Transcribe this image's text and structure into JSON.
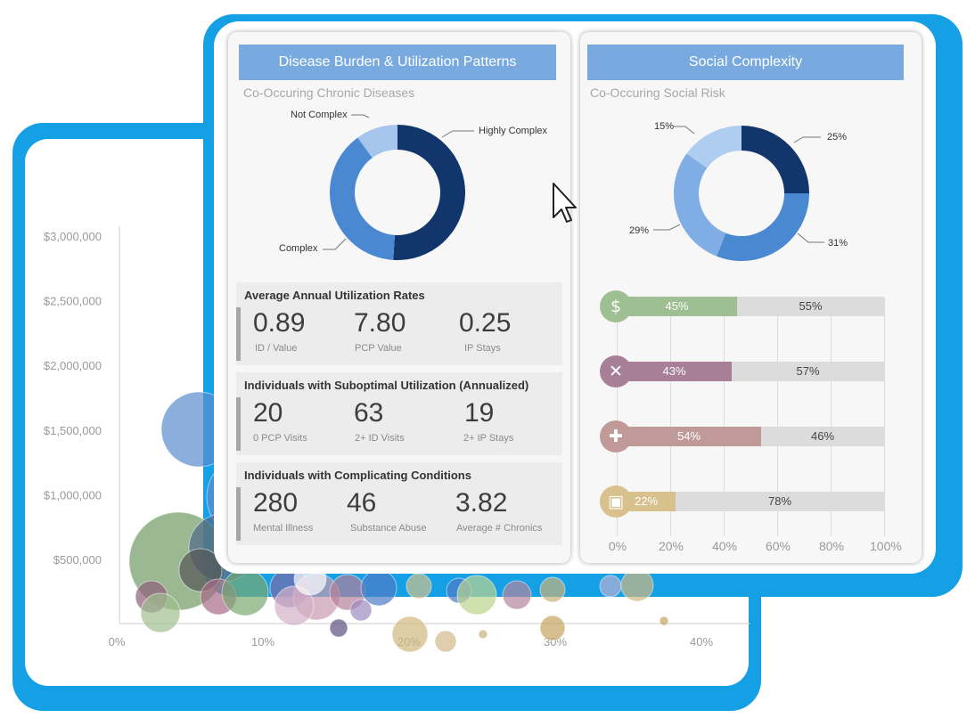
{
  "bubble_chart": {
    "y_ticks": [
      "$3,000,000",
      "$2,500,000",
      "$2,000,000",
      "$1,500,000",
      "$1,000,000",
      "$500,000"
    ],
    "x_ticks": [
      "0%",
      "10%",
      "20%",
      "30%",
      "40%"
    ]
  },
  "left_panel": {
    "header": "Disease Burden & Utilization Patterns",
    "subtitle": "Co-Occuring Chronic Diseases",
    "donut_labels": {
      "highly_complex": "Highly Complex",
      "complex": "Complex",
      "not_complex": "Not Complex"
    },
    "chart_data": {
      "type": "pie",
      "categories": [
        "Highly Complex",
        "Complex",
        "Not Complex"
      ],
      "values": [
        51,
        39,
        10
      ],
      "colors": [
        "#12356b",
        "#4a88d2",
        "#a6c5ec"
      ]
    },
    "utilization": {
      "title": "Average Annual Utilization Rates",
      "v1": "0.89",
      "l1": "ID / Value",
      "v2": "7.80",
      "l2": "PCP Value",
      "v3": "0.25",
      "l3": "IP Stays"
    },
    "suboptimal": {
      "title": "Individuals with Suboptimal Utilization (Annualized)",
      "v1": "20",
      "l1": "0 PCP Visits",
      "v2": "63",
      "l2": "2+ ID Visits",
      "v3": "19",
      "l3": "2+ IP Stays"
    },
    "complicating": {
      "title": "Individuals with Complicating Conditions",
      "v1": "280",
      "l1": "Mental Illness",
      "v2": "46",
      "l2": "Substance Abuse",
      "v3": "3.82",
      "l3": "Average # Chronics"
    }
  },
  "right_panel": {
    "header": "Social Complexity",
    "subtitle": "Co-Occuring Social Risk",
    "donut_labels": {
      "a": "25%",
      "b": "31%",
      "c": "29%",
      "d": "15%"
    },
    "chart_data": {
      "type": "pie",
      "values": [
        25,
        31,
        29,
        15
      ],
      "colors": [
        "#12356b",
        "#4a88d2",
        "#80ade3",
        "#afcdf0"
      ]
    },
    "risk_bars": {
      "type": "bar",
      "rows": [
        {
          "icon": "dollar-icon",
          "glyph": "$",
          "value": 45,
          "label": "45%",
          "rest_label": "55%",
          "color": "#9ebf92"
        },
        {
          "icon": "fork-knife-icon",
          "glyph": "✕",
          "value": 43,
          "label": "43%",
          "rest_label": "57%",
          "color": "#a77f97"
        },
        {
          "icon": "medical-book-icon",
          "glyph": "✚",
          "value": 54,
          "label": "54%",
          "rest_label": "46%",
          "color": "#c09a98"
        },
        {
          "icon": "bus-icon",
          "glyph": "▣",
          "value": 22,
          "label": "22%",
          "rest_label": "78%",
          "color": "#d8c18d"
        }
      ],
      "x_ticks": [
        "0%",
        "20%",
        "40%",
        "60%",
        "80%",
        "100%"
      ]
    }
  }
}
